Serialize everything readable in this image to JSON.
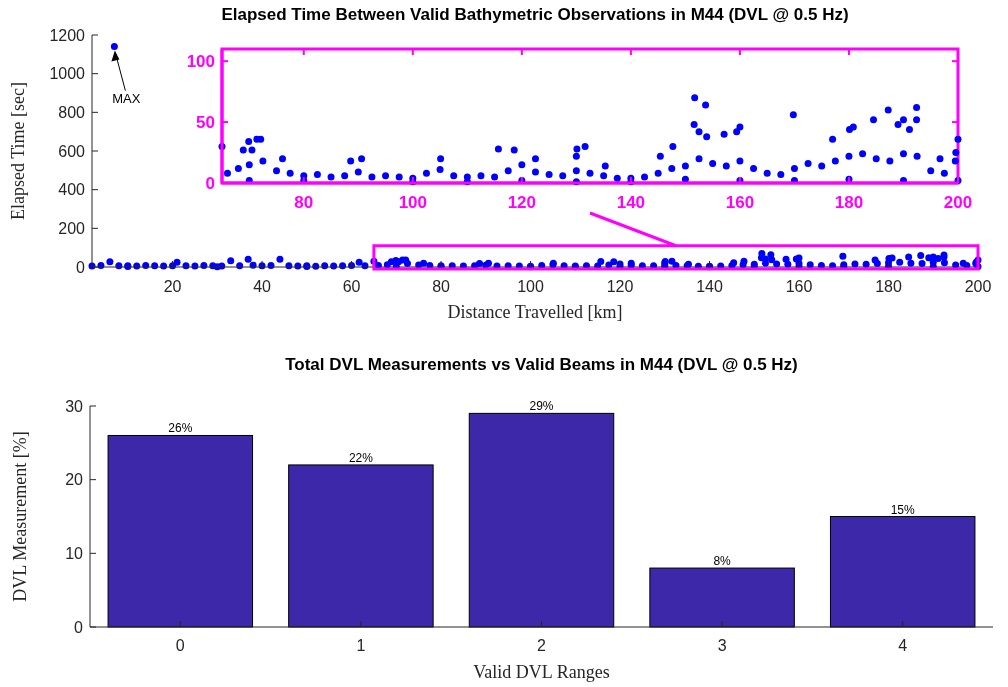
{
  "chart_data": [
    {
      "type": "scatter",
      "title": "Elapsed Time Between Valid Bathymetric Observations in M44 (DVL @ 0.5 Hz)",
      "xlabel": "Distance Travelled [km]",
      "ylabel": "Elapsed Time [sec]",
      "xlim": [
        2,
        200
      ],
      "xticks": [
        20,
        40,
        60,
        80,
        100,
        120,
        140,
        160,
        180,
        200
      ],
      "ylim": [
        0,
        1200
      ],
      "yticks": [
        0,
        200,
        400,
        600,
        800,
        1000,
        1200
      ],
      "marker": "circle",
      "annotations": [
        "MAX"
      ],
      "x": [
        2,
        4,
        6,
        7,
        8,
        10,
        10,
        12,
        14,
        16,
        18,
        20,
        21,
        23,
        25,
        27,
        29,
        30,
        31,
        33,
        35,
        36.9,
        38,
        40,
        42,
        44,
        46,
        48,
        50,
        50,
        52,
        54,
        56,
        58,
        60,
        61.7,
        63,
        65,
        66,
        68,
        68.9,
        69.9,
        70,
        70.5,
        71.4,
        72.1,
        72.5,
        75,
        76.1,
        77.5,
        80,
        80,
        82.5,
        85,
        87.5,
        88.6,
        90,
        90.6,
        92.5,
        95,
        97.5,
        100,
        100,
        102.5,
        105,
        105.1,
        107.5,
        110,
        110,
        112.5,
        115,
        115.7,
        117.5,
        118.6,
        120,
        120,
        122.5,
        122.5,
        125,
        127.5,
        130,
        130,
        130,
        130.1,
        131.6,
        132.5,
        135,
        135.3,
        137.5,
        140,
        140,
        142.5,
        145,
        145.4,
        147.5,
        147.7,
        150,
        150,
        151.6,
        151.7,
        152.5,
        152.5,
        153.7,
        153.9,
        155,
        157.1,
        157.5,
        159.4,
        160,
        160,
        160,
        162.5,
        165,
        167.5,
        169.8,
        170,
        170,
        172.5,
        175,
        177,
        177.5,
        180,
        180,
        180.1,
        180.8,
        182.5,
        184.5,
        185,
        187.2,
        187.5,
        189,
        190,
        190,
        190,
        191.1,
        192.4,
        192.4,
        192.5,
        195,
        196.7,
        197.5,
        199.5,
        199.6,
        200,
        200
      ],
      "series": [
        {
          "color": "#0000ff",
          "values": [
            5,
            8,
            27,
            1140,
            6,
            7,
            2,
            5,
            8,
            6,
            5,
            7,
            25,
            6,
            5,
            8,
            6,
            1,
            5,
            32,
            7,
            40,
            9,
            6,
            8,
            40,
            7,
            5,
            6,
            2,
            4,
            6,
            5,
            7,
            8,
            25,
            6,
            30,
            8,
            12,
            27,
            34,
            2,
            27,
            36,
            36,
            18,
            10,
            20,
            8,
            6,
            2,
            7,
            5,
            6,
            18,
            9,
            20,
            5,
            6,
            5,
            4,
            1,
            8,
            11,
            20,
            6,
            5,
            1,
            6,
            5,
            28,
            10,
            27,
            15,
            2,
            9,
            20,
            7,
            6,
            10,
            1,
            22,
            28,
            30,
            8,
            6,
            14,
            4,
            4,
            1,
            5,
            8,
            22,
            12,
            30,
            14,
            3,
            48,
            70,
            20,
            42,
            64,
            38,
            16,
            40,
            14,
            42,
            18,
            2,
            46,
            12,
            8,
            7,
            56,
            12,
            2,
            16,
            14,
            36,
            18,
            22,
            3,
            44,
            46,
            24,
            52,
            20,
            60,
            18,
            48,
            24,
            2,
            52,
            44,
            62,
            52,
            22,
            10,
            20,
            8,
            18,
            25,
            36,
            2
          ]
        }
      ]
    },
    {
      "type": "scatter",
      "xlim": [
        65,
        200
      ],
      "xticks": [
        80,
        100,
        120,
        140,
        160,
        180,
        200
      ],
      "ylim": [
        0,
        110
      ],
      "yticks": [
        0,
        50,
        100
      ],
      "marker": "circle",
      "x": [
        65,
        66,
        68,
        68.9,
        69.9,
        70,
        70,
        70.5,
        71.4,
        72.1,
        72.5,
        75,
        76.1,
        77.5,
        80,
        80,
        82.5,
        85,
        87.5,
        88.6,
        90,
        90.6,
        92.5,
        95,
        97.5,
        100,
        100,
        102.5,
        105,
        105.1,
        107.5,
        110,
        110,
        112.5,
        115,
        115.7,
        117.5,
        118.6,
        120,
        120,
        122.5,
        122.5,
        125,
        127.5,
        130,
        130,
        130,
        130.1,
        131.6,
        132.5,
        135,
        135.3,
        137.5,
        140,
        140,
        142.5,
        145,
        145.4,
        147.5,
        147.7,
        150,
        150,
        151.6,
        151.7,
        152.5,
        152.5,
        153.7,
        153.9,
        155,
        157.1,
        157.5,
        159.4,
        160,
        160,
        160,
        162.5,
        165,
        167.5,
        169.8,
        170,
        170,
        172.5,
        175,
        177,
        177.5,
        180,
        180,
        180.1,
        180.8,
        182.5,
        184.5,
        185,
        187.2,
        187.5,
        189,
        190,
        190,
        190,
        191.1,
        192.4,
        192.4,
        192.5,
        195,
        196.7,
        197.5,
        199.5,
        199.6,
        200,
        200
      ],
      "series": [
        {
          "color": "#0000ff",
          "values": [
            30,
            8,
            12,
            27,
            34,
            15,
            2,
            27,
            36,
            36,
            18,
            10,
            20,
            8,
            6,
            2,
            7,
            5,
            6,
            18,
            9,
            20,
            5,
            6,
            5,
            4,
            1,
            8,
            11,
            20,
            6,
            5,
            1,
            6,
            5,
            28,
            10,
            27,
            15,
            2,
            9,
            20,
            7,
            6,
            10,
            1,
            22,
            28,
            30,
            8,
            6,
            14,
            4,
            4,
            1,
            5,
            8,
            22,
            12,
            30,
            14,
            3,
            48,
            70,
            20,
            42,
            64,
            38,
            16,
            40,
            14,
            42,
            18,
            2,
            46,
            12,
            8,
            7,
            56,
            12,
            2,
            16,
            14,
            36,
            18,
            22,
            3,
            44,
            46,
            24,
            52,
            20,
            60,
            18,
            48,
            24,
            2,
            52,
            44,
            62,
            52,
            22,
            10,
            20,
            8,
            18,
            25,
            36,
            2
          ]
        }
      ]
    },
    {
      "type": "bar",
      "title": "Total DVL Measurements vs Valid Beams in M44 (DVL @ 0.5 Hz)",
      "xlabel": "Valid DVL Ranges",
      "ylabel": "DVL Measurement [%]",
      "categories": [
        "0",
        "1",
        "2",
        "3",
        "4"
      ],
      "values": [
        26,
        22,
        29,
        8,
        15
      ],
      "value_labels": [
        "26%",
        "22%",
        "29%",
        "8%",
        "15%"
      ],
      "color": "#3c28a8",
      "ylim": [
        0,
        30
      ],
      "yticks": [
        0,
        10,
        20,
        30
      ]
    }
  ]
}
